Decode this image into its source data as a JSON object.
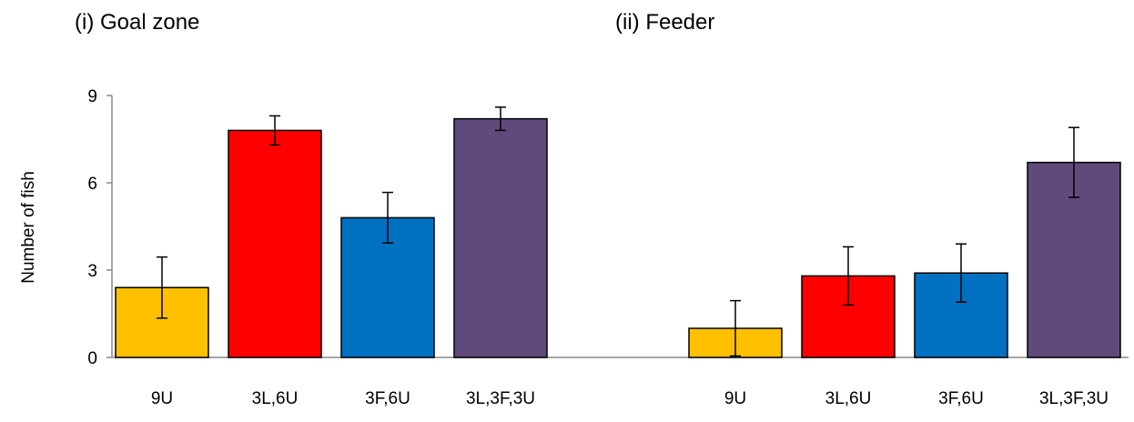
{
  "chart_data": [
    {
      "type": "bar",
      "title": "(i) Goal zone",
      "ylabel": "Number of fish",
      "categories": [
        "9U",
        "3L,6U",
        "3F,6U",
        "3L,3F,3U"
      ],
      "values": [
        2.4,
        7.8,
        4.8,
        8.2
      ],
      "errors": [
        1.05,
        0.5,
        0.87,
        0.4
      ],
      "colors": [
        "#ffc000",
        "#ff0000",
        "#0070c0",
        "#604a7b"
      ],
      "ylim": [
        0,
        9
      ],
      "yticks": [
        0,
        3,
        6,
        9
      ]
    },
    {
      "type": "bar",
      "title": "(ii) Feeder",
      "categories": [
        "9U",
        "3L,6U",
        "3F,6U",
        "3L,3F,3U"
      ],
      "values": [
        1.0,
        2.8,
        2.9,
        6.7
      ],
      "errors": [
        0.95,
        1.0,
        1.0,
        1.2
      ],
      "colors": [
        "#ffc000",
        "#ff0000",
        "#0070c0",
        "#604a7b"
      ],
      "ylim": [
        0,
        9
      ]
    }
  ]
}
